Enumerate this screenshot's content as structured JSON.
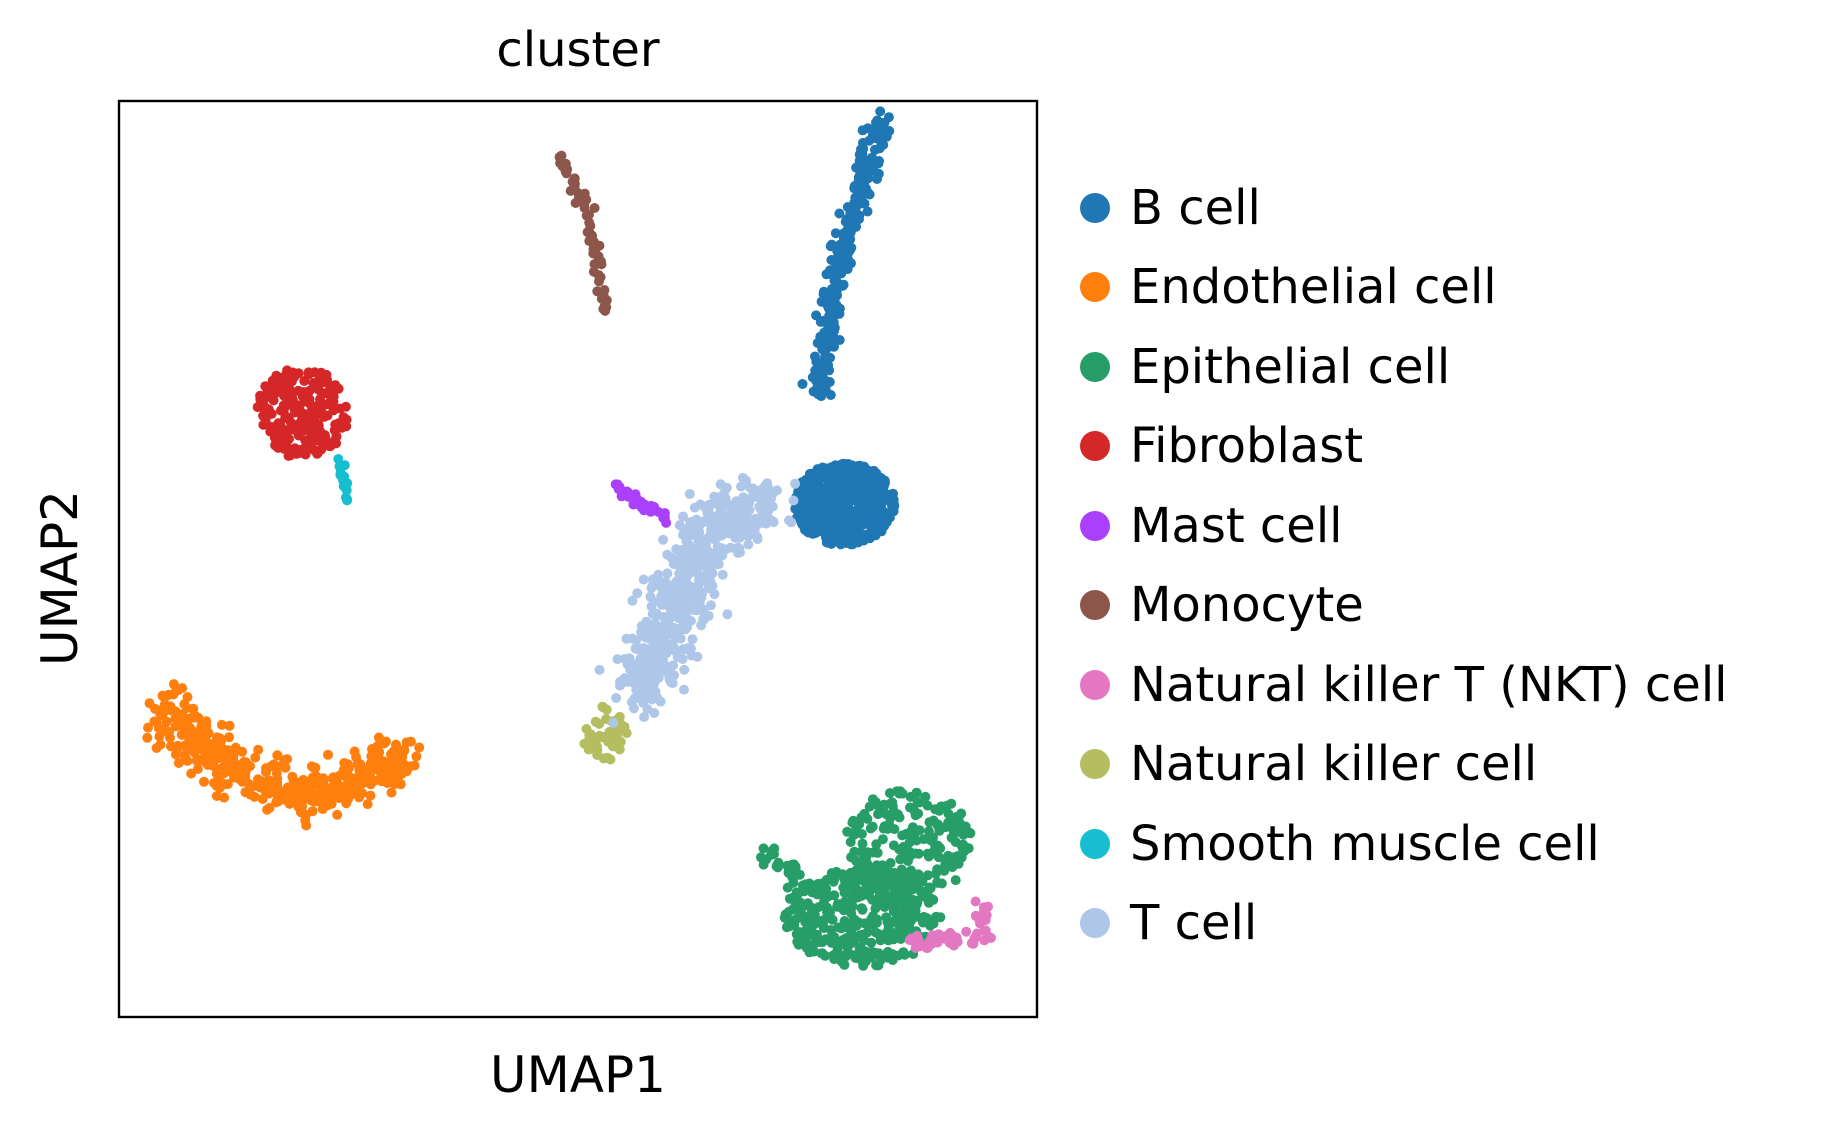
{
  "chart_data": {
    "type": "scatter",
    "title": "cluster",
    "xlabel": "UMAP1",
    "ylabel": "UMAP2",
    "xlim": [
      0,
      10
    ],
    "ylim": [
      0,
      10
    ],
    "grid": false,
    "ticks": false,
    "legend": {
      "placement": "right-outside"
    },
    "series": [
      {
        "name": "B cell",
        "color": "#1f77b4",
        "clusters": [
          {
            "path": [
              [
                7.6,
                6.8
              ],
              [
                7.9,
                8.4
              ],
              [
                8.3,
                9.8
              ]
            ],
            "spread": 0.12,
            "n": 240
          },
          {
            "type": "blob",
            "center": [
              7.9,
              5.6
            ],
            "rx": 0.55,
            "ry": 0.45,
            "n": 500
          }
        ]
      },
      {
        "name": "Endothelial cell",
        "color": "#ff7f0e",
        "clusters": [
          {
            "path": [
              [
                0.5,
                3.4
              ],
              [
                1.0,
                2.9
              ],
              [
                1.9,
                2.4
              ],
              [
                3.2,
                2.8
              ]
            ],
            "spread": 0.28,
            "n": 420
          }
        ]
      },
      {
        "name": "Epithelial cell",
        "color": "#279e68",
        "clusters": [
          {
            "type": "blob",
            "center": [
              8.1,
              1.1
            ],
            "rx": 0.85,
            "ry": 0.55,
            "n": 380
          },
          {
            "type": "blob",
            "center": [
              8.6,
              1.9
            ],
            "rx": 0.7,
            "ry": 0.6,
            "n": 200
          },
          {
            "path": [
              [
                7.0,
                1.8
              ],
              [
                7.6,
                1.4
              ]
            ],
            "spread": 0.1,
            "n": 30
          }
        ]
      },
      {
        "name": "Fibroblast",
        "color": "#d62728",
        "clusters": [
          {
            "type": "blob",
            "center": [
              2.0,
              6.6
            ],
            "rx": 0.5,
            "ry": 0.5,
            "n": 200
          }
        ]
      },
      {
        "name": "Mast cell",
        "color": "#aa40fc",
        "clusters": [
          {
            "path": [
              [
                5.4,
                5.8
              ],
              [
                6.0,
                5.4
              ]
            ],
            "spread": 0.06,
            "n": 40
          }
        ]
      },
      {
        "name": "Monocyte",
        "color": "#8c564b",
        "clusters": [
          {
            "path": [
              [
                4.7,
                9.6
              ],
              [
                5.1,
                8.8
              ],
              [
                5.3,
                7.7
              ]
            ],
            "spread": 0.05,
            "n": 70
          }
        ]
      },
      {
        "name": "Natural killer T (NKT) cell",
        "color": "#e377c2",
        "clusters": [
          {
            "path": [
              [
                8.6,
                0.8
              ],
              [
                9.4,
                0.9
              ],
              [
                9.4,
                1.3
              ]
            ],
            "spread": 0.1,
            "n": 60
          }
        ]
      },
      {
        "name": "Natural killer cell",
        "color": "#b5bd61",
        "clusters": [
          {
            "type": "blob",
            "center": [
              5.3,
              3.1
            ],
            "rx": 0.25,
            "ry": 0.3,
            "n": 50
          }
        ]
      },
      {
        "name": "Smooth muscle cell",
        "color": "#17becf",
        "clusters": [
          {
            "path": [
              [
                2.4,
                6.1
              ],
              [
                2.5,
                5.6
              ]
            ],
            "spread": 0.04,
            "n": 16
          }
        ]
      },
      {
        "name": "T cell",
        "color": "#aec7e8",
        "clusters": [
          {
            "path": [
              [
                5.6,
                3.5
              ],
              [
                6.1,
                4.6
              ],
              [
                6.5,
                5.4
              ],
              [
                7.1,
                5.6
              ]
            ],
            "spread": 0.32,
            "n": 600
          }
        ]
      }
    ]
  }
}
